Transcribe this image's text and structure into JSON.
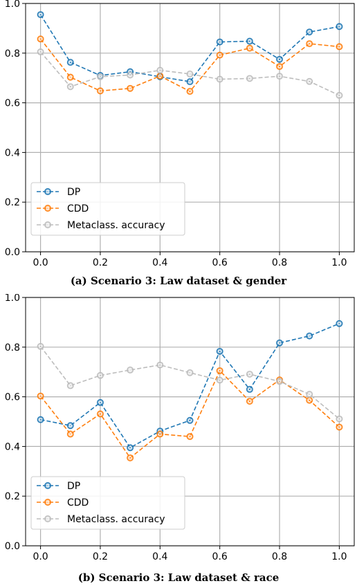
{
  "chart_data": [
    {
      "type": "line",
      "caption": "(a) Scenario 3: Law dataset & gender",
      "x": [
        0.0,
        0.1,
        0.2,
        0.3,
        0.4,
        0.5,
        0.6,
        0.7,
        0.8,
        0.9,
        1.0
      ],
      "xticks": [
        "0.0",
        "0.2",
        "0.4",
        "0.6",
        "0.8",
        "1.0"
      ],
      "yticks": [
        "0.0",
        "0.2",
        "0.4",
        "0.6",
        "0.8",
        "1.0"
      ],
      "xlim": [
        -0.05,
        1.05
      ],
      "ylim": [
        0.0,
        1.0
      ],
      "grid": true,
      "legend_position": "lower-left",
      "series": [
        {
          "name": "DP",
          "color": "#1f77b4",
          "values": [
            0.955,
            0.763,
            0.71,
            0.725,
            0.705,
            0.685,
            0.845,
            0.848,
            0.775,
            0.885,
            0.907
          ]
        },
        {
          "name": "CDD",
          "color": "#ff7f0e",
          "values": [
            0.857,
            0.703,
            0.648,
            0.658,
            0.708,
            0.646,
            0.792,
            0.82,
            0.746,
            0.838,
            0.826
          ]
        },
        {
          "name": "Metaclass. accuracy",
          "color": "#bdbdbd",
          "values": [
            0.805,
            0.665,
            0.705,
            0.712,
            0.731,
            0.716,
            0.695,
            0.698,
            0.707,
            0.686,
            0.63
          ]
        }
      ]
    },
    {
      "type": "line",
      "caption": "(b) Scenario 3: Law dataset & race",
      "x": [
        0.0,
        0.1,
        0.2,
        0.3,
        0.4,
        0.5,
        0.6,
        0.7,
        0.8,
        0.9,
        1.0
      ],
      "xticks": [
        "0.0",
        "0.2",
        "0.4",
        "0.6",
        "0.8",
        "1.0"
      ],
      "yticks": [
        "0.0",
        "0.2",
        "0.4",
        "0.6",
        "0.8",
        "1.0"
      ],
      "xlim": [
        -0.05,
        1.05
      ],
      "ylim": [
        0.0,
        1.0
      ],
      "grid": true,
      "legend_position": "lower-left",
      "series": [
        {
          "name": "DP",
          "color": "#1f77b4",
          "values": [
            0.508,
            0.484,
            0.577,
            0.395,
            0.462,
            0.505,
            0.783,
            0.63,
            0.817,
            0.845,
            0.895
          ]
        },
        {
          "name": "CDD",
          "color": "#ff7f0e",
          "values": [
            0.603,
            0.45,
            0.531,
            0.354,
            0.45,
            0.44,
            0.705,
            0.582,
            0.668,
            0.586,
            0.478
          ]
        },
        {
          "name": "Metaclass. accuracy",
          "color": "#bdbdbd",
          "values": [
            0.803,
            0.645,
            0.686,
            0.708,
            0.728,
            0.697,
            0.667,
            0.691,
            0.662,
            0.61,
            0.511
          ]
        }
      ]
    }
  ]
}
